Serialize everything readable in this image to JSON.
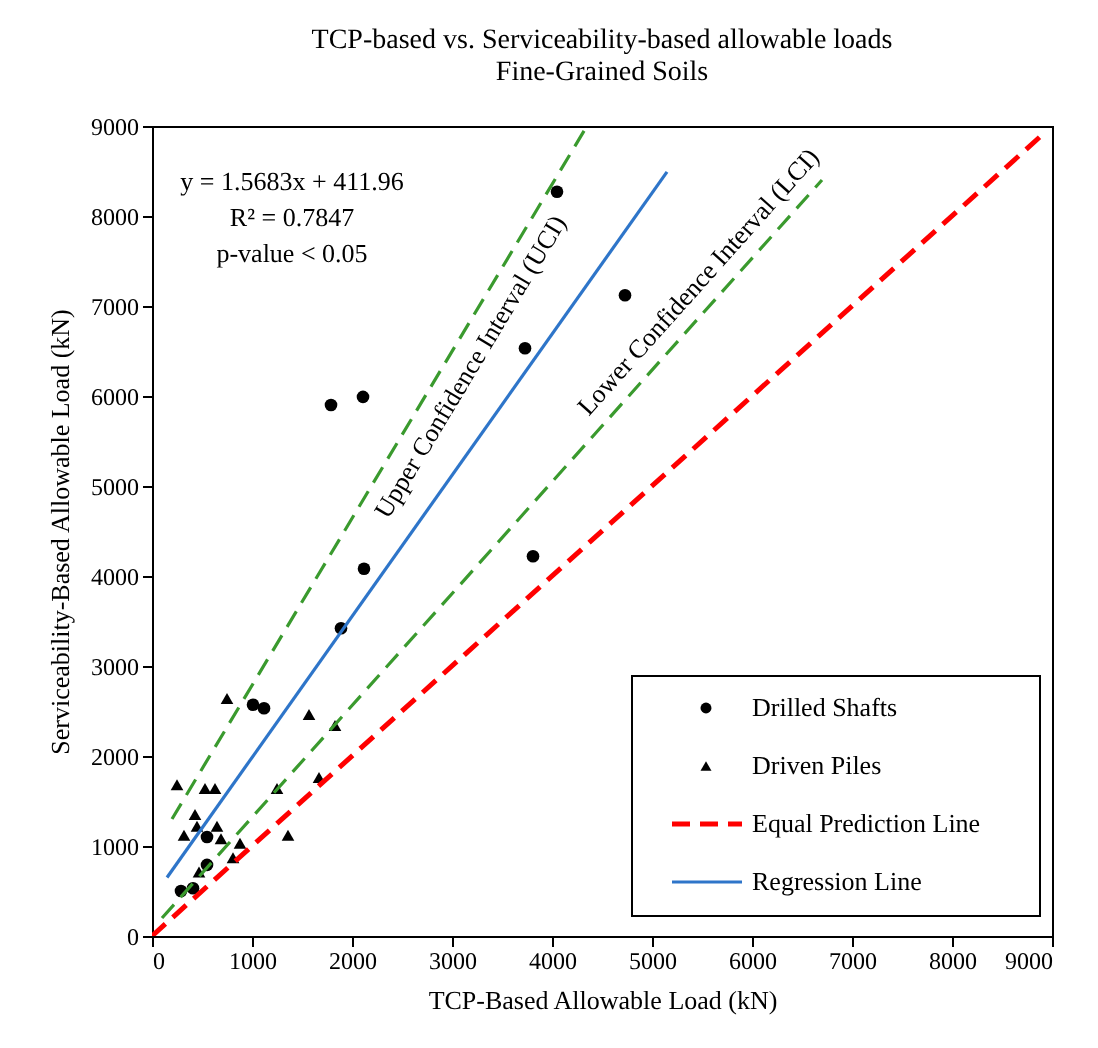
{
  "chart_data": {
    "type": "scatter",
    "title": [
      "TCP-based vs. Serviceability-based allowable loads",
      "Fine-Grained Soils"
    ],
    "xlabel": "TCP-Based Allowable  Load (kN)",
    "ylabel": "Serviceability-Based  Allowable  Load (kN)",
    "xlim": [
      0,
      9000
    ],
    "ylim": [
      0,
      9000
    ],
    "xticks": [
      0,
      1000,
      2000,
      3000,
      4000,
      5000,
      6000,
      7000,
      8000,
      9000
    ],
    "yticks": [
      0,
      1000,
      2000,
      3000,
      4000,
      5000,
      6000,
      7000,
      8000,
      9000
    ],
    "grid": false,
    "legend": "bottom right",
    "series": [
      {
        "name": "Drilled Shafts",
        "marker": "circle",
        "color": "#000000",
        "x": [
          1790,
          2110,
          4050,
          4730,
          3730,
          2120,
          3810,
          1890,
          1010,
          1120,
          550,
          550,
          290,
          410
        ],
        "values": [
          5900,
          5990,
          8270,
          7120,
          6530,
          4080,
          4220,
          3420,
          2570,
          2530,
          1100,
          790,
          500,
          530
        ]
      },
      {
        "name": "Driven Piles",
        "marker": "triangle",
        "color": "#000000",
        "x": [
          750,
          250,
          530,
          630,
          430,
          450,
          320,
          650,
          690,
          880,
          810,
          470,
          1250,
          1570,
          1830,
          1670,
          1360
        ],
        "values": [
          2640,
          1680,
          1640,
          1640,
          1350,
          1220,
          1120,
          1220,
          1080,
          1030,
          870,
          710,
          1640,
          2460,
          2340,
          1760,
          1120
        ]
      },
      {
        "name": "Equal Prediction Line",
        "type": "line",
        "line_style": "dashed",
        "color": "#ff0000",
        "x": [
          0,
          8900
        ],
        "values": [
          0,
          8900
        ]
      },
      {
        "name": "Regression Line",
        "type": "line",
        "line_style": "solid",
        "color": "#2e75c9",
        "x": [
          150,
          5150
        ],
        "values": [
          650,
          8490
        ]
      },
      {
        "type": "line",
        "line_style": "dashed",
        "color": "#3a9a2e",
        "x": [
          200,
          4350
        ],
        "values": [
          1300,
          9000
        ]
      },
      {
        "type": "line",
        "line_style": "dashed",
        "color": "#3a9a2e",
        "x": [
          100,
          6700
        ],
        "values": [
          200,
          8400
        ]
      }
    ],
    "annotations": [
      "y = 1.5683x + 411.96",
      "R² = 0.7847",
      "p-value  < 0.05",
      "Upper Confidence  Interval  (UCI)",
      "Lower Confidence  Interval  (LCI)"
    ]
  }
}
